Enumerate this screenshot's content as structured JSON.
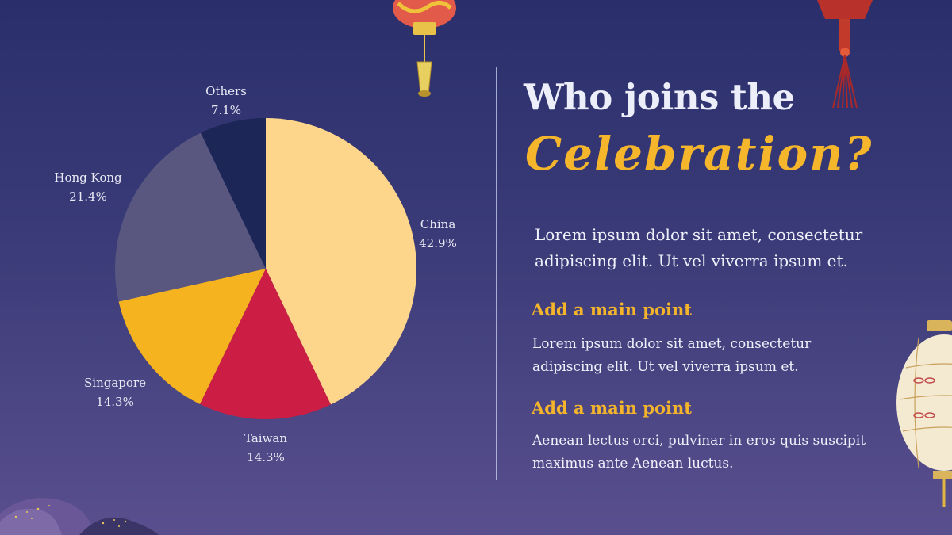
{
  "colors": {
    "background_top": "#2a2f6b",
    "background_bottom": "#5a4f8e",
    "accent_gold": "#f5b52b",
    "text_light": "#eef0fa"
  },
  "slide": {
    "title_line1": "Who joins the",
    "title_line2": "Celebration?",
    "intro": "Lorem ipsum dolor sit amet, consectetur adipiscing elit. Ut vel viverra ipsum et.",
    "points": [
      {
        "heading": "Add a main point",
        "body": "Lorem ipsum dolor sit amet, consectetur adipiscing elit. Ut vel viverra ipsum et."
      },
      {
        "heading": "Add a main point",
        "body": "Aenean lectus orci, pulvinar in eros quis suscipit maximus ante Aenean luctus."
      }
    ]
  },
  "decorations": [
    "red-lantern-icon",
    "red-tassel-icon",
    "paper-lantern-icon",
    "gold-hills-icon"
  ],
  "chart_data": {
    "type": "pie",
    "start": "12 o'clock, clockwise",
    "slices": [
      {
        "label": "China",
        "value": 42.9,
        "display": "42.9%",
        "color": "#fdd68b"
      },
      {
        "label": "Taiwan",
        "value": 14.3,
        "display": "14.3%",
        "color": "#cc1e44"
      },
      {
        "label": "Singapore",
        "value": 14.3,
        "display": "14.3%",
        "color": "#f5b41f"
      },
      {
        "label": "Hong Kong",
        "value": 21.4,
        "display": "21.4%",
        "color": "#595780"
      },
      {
        "label": "Others",
        "value": 7.1,
        "display": "7.1%",
        "color": "#1c2657"
      }
    ]
  }
}
